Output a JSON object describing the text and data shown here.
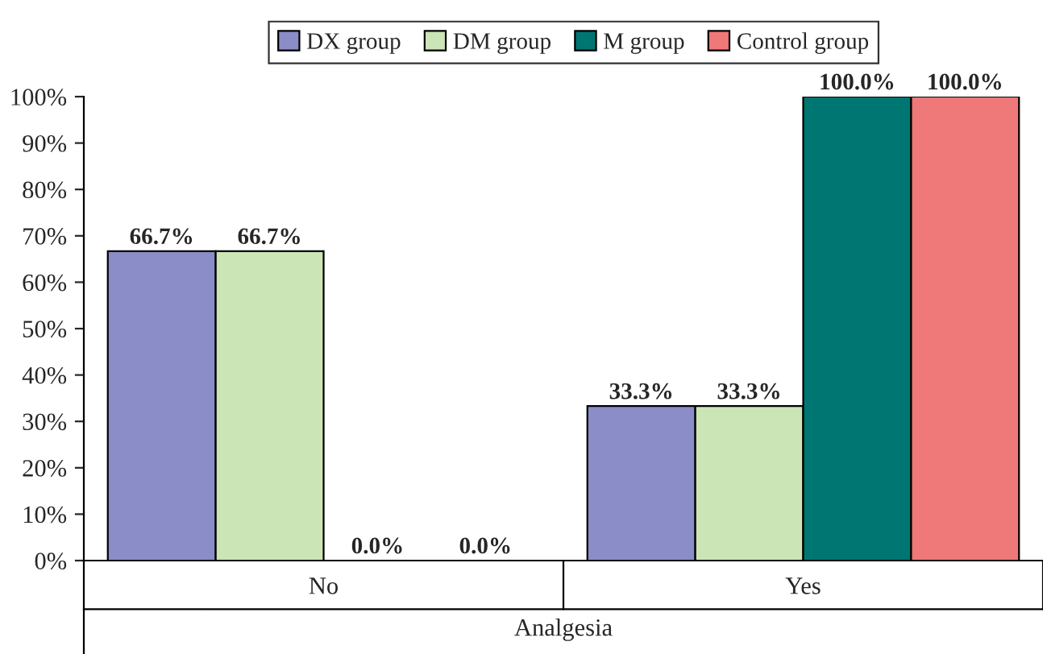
{
  "chart_data": {
    "type": "bar",
    "xlabel": "Analgesia",
    "categories": [
      "No",
      "Yes"
    ],
    "series": [
      {
        "name": "DX group",
        "color": "#8b8dc8",
        "values": [
          66.7,
          33.3
        ],
        "value_labels": [
          "66.7%",
          "33.3%"
        ]
      },
      {
        "name": "DM group",
        "color": "#cbe5b7",
        "values": [
          66.7,
          33.3
        ],
        "value_labels": [
          "66.7%",
          "33.3%"
        ]
      },
      {
        "name": "M group",
        "color": "#007672",
        "values": [
          0.0,
          100.0
        ],
        "value_labels": [
          "0.0%",
          "100.0%"
        ]
      },
      {
        "name": "Control group",
        "color": "#ef7878",
        "values": [
          0.0,
          100.0
        ],
        "value_labels": [
          "0.0%",
          "100.0%"
        ]
      }
    ],
    "ylim": [
      0,
      100
    ],
    "yticks": [
      {
        "value": 0,
        "label": "0%"
      },
      {
        "value": 10,
        "label": "10%"
      },
      {
        "value": 20,
        "label": "20%"
      },
      {
        "value": 30,
        "label": "30%"
      },
      {
        "value": 40,
        "label": "40%"
      },
      {
        "value": 50,
        "label": "50%"
      },
      {
        "value": 60,
        "label": "60%"
      },
      {
        "value": 70,
        "label": "70%"
      },
      {
        "value": 80,
        "label": "80%"
      },
      {
        "value": 90,
        "label": "90%"
      },
      {
        "value": 100,
        "label": "100%"
      }
    ],
    "grid": false,
    "legend": "top"
  }
}
